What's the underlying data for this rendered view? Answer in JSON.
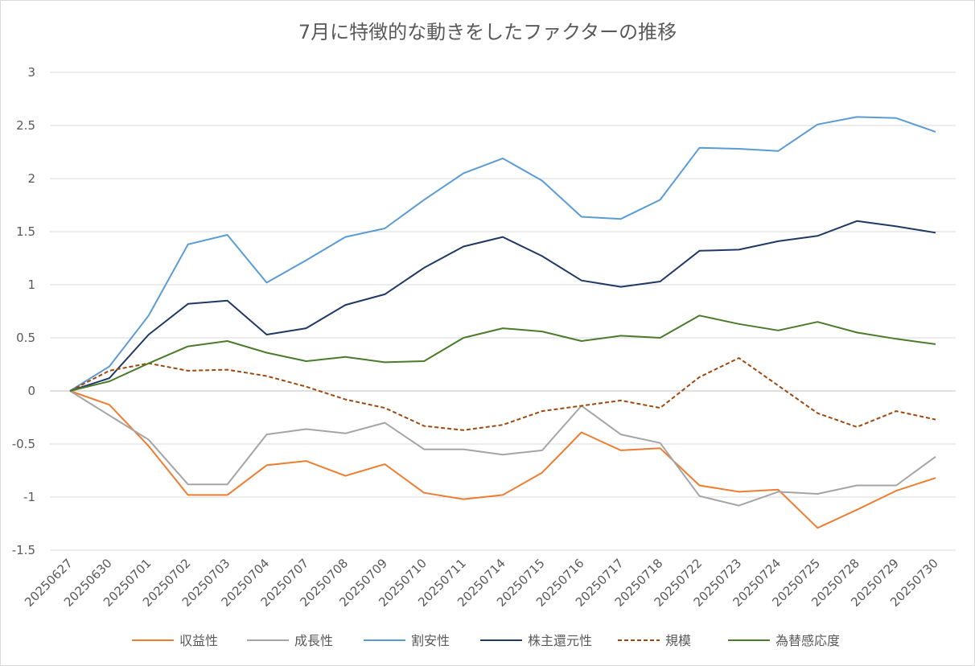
{
  "chart_data": {
    "type": "line",
    "title": "7月に特徴的な動きをしたファクターの推移",
    "xlabel": "",
    "ylabel": "",
    "ylim": [
      -1.5,
      3
    ],
    "yticks": [
      -1.5,
      -1,
      -0.5,
      0,
      0.5,
      1,
      1.5,
      2,
      2.5,
      3
    ],
    "ytick_labels": [
      "-1.5",
      "-1",
      "-0.5",
      "0",
      "0.5",
      "1",
      "1.5",
      "2",
      "2.5",
      "3"
    ],
    "grid": true,
    "legend": "bottom",
    "categories": [
      "20250627",
      "20250630",
      "20250701",
      "20250702",
      "20250703",
      "20250704",
      "20250707",
      "20250708",
      "20250709",
      "20250710",
      "20250711",
      "20250714",
      "20250715",
      "20250716",
      "20250717",
      "20250718",
      "20250722",
      "20250723",
      "20250724",
      "20250725",
      "20250728",
      "20250729",
      "20250730"
    ],
    "series": [
      {
        "name": "収益性",
        "color": "#ED7D31",
        "dash": false,
        "values": [
          0,
          -0.13,
          -0.52,
          -0.98,
          -0.98,
          -0.7,
          -0.66,
          -0.8,
          -0.69,
          -0.96,
          -1.02,
          -0.98,
          -0.77,
          -0.39,
          -0.56,
          -0.54,
          -0.89,
          -0.95,
          -0.93,
          -1.29,
          -1.12,
          -0.94,
          -0.82
        ]
      },
      {
        "name": "成長性",
        "color": "#A5A5A5",
        "dash": false,
        "values": [
          0,
          -0.23,
          -0.46,
          -0.88,
          -0.88,
          -0.41,
          -0.36,
          -0.4,
          -0.3,
          -0.55,
          -0.55,
          -0.6,
          -0.56,
          -0.14,
          -0.41,
          -0.49,
          -0.99,
          -1.08,
          -0.95,
          -0.97,
          -0.89,
          -0.89,
          -0.62
        ]
      },
      {
        "name": "割安性",
        "color": "#5B9BD5",
        "dash": false,
        "values": [
          0,
          0.23,
          0.71,
          1.38,
          1.47,
          1.02,
          1.23,
          1.45,
          1.53,
          1.8,
          2.05,
          2.19,
          1.98,
          1.64,
          1.62,
          1.8,
          2.29,
          2.28,
          2.26,
          2.51,
          2.58,
          2.57,
          2.44
        ]
      },
      {
        "name": "株主還元性",
        "color": "#203864",
        "dash": false,
        "values": [
          0,
          0.12,
          0.53,
          0.82,
          0.85,
          0.53,
          0.59,
          0.81,
          0.91,
          1.16,
          1.36,
          1.45,
          1.27,
          1.04,
          0.98,
          1.03,
          1.32,
          1.33,
          1.41,
          1.46,
          1.6,
          1.55,
          1.49
        ]
      },
      {
        "name": "規模",
        "color": "#9E480E",
        "dash": true,
        "values": [
          0,
          0.19,
          0.26,
          0.19,
          0.2,
          0.14,
          0.04,
          -0.08,
          -0.16,
          -0.33,
          -0.37,
          -0.32,
          -0.19,
          -0.14,
          -0.09,
          -0.16,
          0.13,
          0.31,
          0.05,
          -0.21,
          -0.34,
          -0.19,
          -0.27
        ]
      },
      {
        "name": "為替感応度",
        "color": "#4A7B2B",
        "dash": false,
        "values": [
          0,
          0.09,
          0.26,
          0.42,
          0.47,
          0.36,
          0.28,
          0.32,
          0.27,
          0.28,
          0.5,
          0.59,
          0.56,
          0.47,
          0.52,
          0.5,
          0.71,
          0.63,
          0.57,
          0.65,
          0.55,
          0.49,
          0.44
        ]
      }
    ]
  }
}
